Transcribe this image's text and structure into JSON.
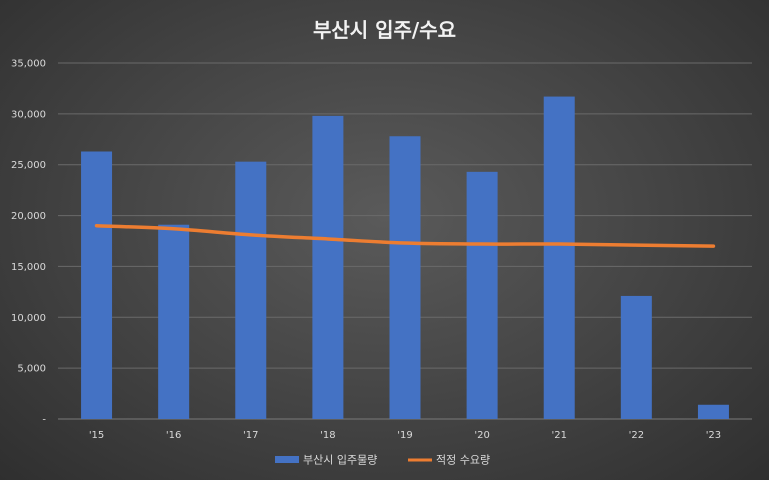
{
  "chart_data": {
    "type": "bar",
    "title": "부산시 입주/수요",
    "categories": [
      "'15",
      "'16",
      "'17",
      "'18",
      "'19",
      "'20",
      "'21",
      "'22",
      "'23"
    ],
    "series": [
      {
        "name": "부산시 입주물량",
        "type": "bar",
        "color": "#4472c4",
        "values": [
          26300,
          19100,
          25300,
          29800,
          27800,
          24300,
          31700,
          12100,
          1400
        ]
      },
      {
        "name": "적정 수요량",
        "type": "line",
        "color": "#ed7d31",
        "values": [
          19000,
          18700,
          18100,
          17700,
          17300,
          17200,
          17200,
          17100,
          17000
        ]
      }
    ],
    "ylim": [
      0,
      35000
    ],
    "yticks": [
      0,
      5000,
      10000,
      15000,
      20000,
      25000,
      30000,
      35000
    ],
    "ytick_labels": [
      "-",
      "5,000",
      "10,000",
      "15,000",
      "20,000",
      "25,000",
      "30,000",
      "35,000"
    ],
    "grid": true,
    "legend_position": "bottom"
  }
}
